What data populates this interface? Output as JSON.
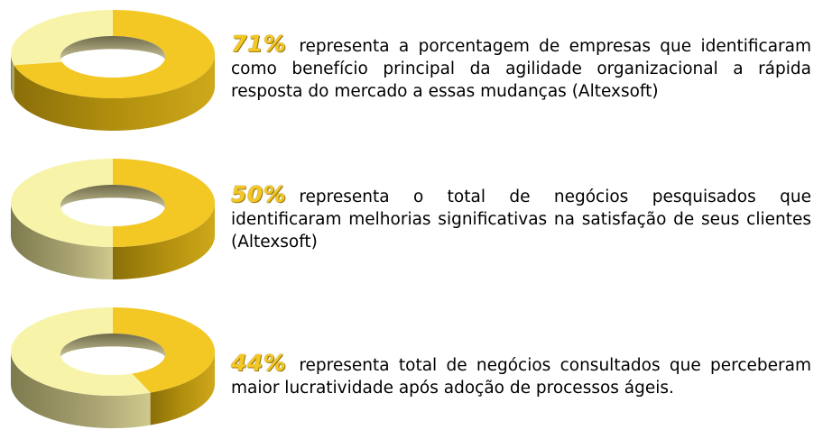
{
  "colors": {
    "accent": "#f3c724",
    "accent_side": "#b18f0e",
    "rest": "#f7f4aa",
    "rest_side": "#a9a372",
    "text": "#000000"
  },
  "stats": [
    {
      "percent_label": "71%",
      "description": "representa  a porcentagem de empresas que identificaram como benefício principal da agilidade organizacional a rápida resposta do mercado a essas mudanças (Altexsoft)"
    },
    {
      "percent_label": "50%",
      "description": "representa o total de negócios pesquisados que identificaram melhorias significativas na satisfação de seus clientes (Altexsoft)"
    },
    {
      "percent_label": "44%",
      "description": "representa total de negócios consultados que perceberam maior lucratividade após adoção de processos ágeis."
    }
  ],
  "chart_data": [
    {
      "type": "pie",
      "style": "3d-donut",
      "values": [
        71,
        29
      ],
      "highlight_index": 0
    },
    {
      "type": "pie",
      "style": "3d-donut",
      "values": [
        50,
        50
      ],
      "highlight_index": 0
    },
    {
      "type": "pie",
      "style": "3d-donut",
      "values": [
        44,
        56
      ],
      "highlight_index": 0
    }
  ]
}
